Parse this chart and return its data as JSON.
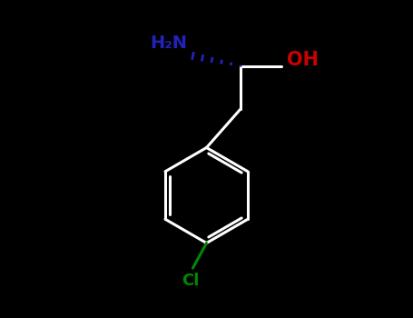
{
  "bg_color": "#000000",
  "bond_color": "#ffffff",
  "NH2_color": "#2222bb",
  "OH_color": "#cc0000",
  "Cl_color": "#008800",
  "bond_width": 2.2,
  "fig_width": 4.55,
  "fig_height": 3.5,
  "dpi": 100,
  "xlim": [
    0,
    9
  ],
  "ylim": [
    0,
    7
  ]
}
